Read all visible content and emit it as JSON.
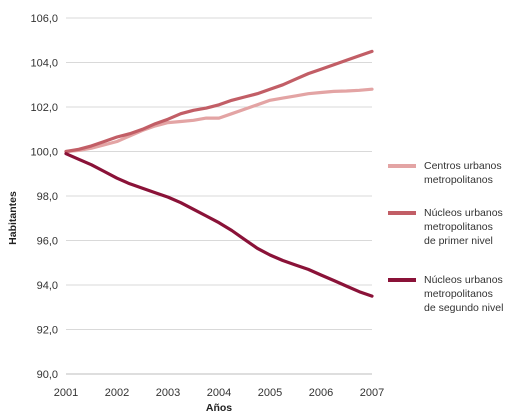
{
  "chart_data": {
    "type": "line",
    "title": "",
    "xlabel": "Años",
    "ylabel": "Habitantes",
    "xlim": [
      2001,
      2007
    ],
    "ylim": [
      90.0,
      106.0
    ],
    "y_ticks": [
      "90,0",
      "92,0",
      "94,0",
      "96,0",
      "98,0",
      "100,0",
      "102,0",
      "104,0",
      "106,0"
    ],
    "x_ticks": [
      "2001",
      "2002",
      "2003",
      "2004",
      "2005",
      "2006",
      "2007"
    ],
    "grid": "horizontal",
    "legend_position": "right",
    "series": [
      {
        "name": "Centros urbanos metropolitanos",
        "legend_lines": [
          "Centros urbanos",
          "metropolitanos"
        ],
        "color": "#e3a4a4",
        "x": [
          2001,
          2001.25,
          2001.5,
          2001.75,
          2002,
          2002.25,
          2002.5,
          2002.75,
          2003,
          2003.25,
          2003.5,
          2003.75,
          2004,
          2004.25,
          2004.5,
          2004.75,
          2005,
          2005.25,
          2005.5,
          2005.75,
          2006,
          2006.25,
          2006.5,
          2006.75,
          2007
        ],
        "y": [
          100.0,
          100.05,
          100.15,
          100.3,
          100.45,
          100.7,
          100.95,
          101.15,
          101.3,
          101.35,
          101.4,
          101.5,
          101.5,
          101.7,
          101.9,
          102.1,
          102.3,
          102.4,
          102.5,
          102.6,
          102.65,
          102.7,
          102.72,
          102.75,
          102.8
        ]
      },
      {
        "name": "Núcleos urbanos metropolitanos de primer nivel",
        "legend_lines": [
          "Núcleos urbanos",
          "metropolitanos",
          "de primer nivel"
        ],
        "color": "#c25e66",
        "x": [
          2001,
          2001.25,
          2001.5,
          2001.75,
          2002,
          2002.25,
          2002.5,
          2002.75,
          2003,
          2003.25,
          2003.5,
          2003.75,
          2004,
          2004.25,
          2004.5,
          2004.75,
          2005,
          2005.25,
          2005.5,
          2005.75,
          2006,
          2006.25,
          2006.5,
          2006.75,
          2007
        ],
        "y": [
          100.0,
          100.1,
          100.25,
          100.45,
          100.65,
          100.8,
          101.0,
          101.25,
          101.45,
          101.7,
          101.85,
          101.95,
          102.1,
          102.3,
          102.45,
          102.6,
          102.8,
          103.0,
          103.25,
          103.5,
          103.7,
          103.9,
          104.1,
          104.3,
          104.5
        ]
      },
      {
        "name": "Núcleos urbanos metropolitanos de segundo nivel",
        "legend_lines": [
          "Núcleos urbanos",
          "metropolitanos",
          "de segundo nivel"
        ],
        "color": "#8a1238",
        "x": [
          2001,
          2001.25,
          2001.5,
          2001.75,
          2002,
          2002.25,
          2002.5,
          2002.75,
          2003,
          2003.25,
          2003.5,
          2003.75,
          2004,
          2004.25,
          2004.5,
          2004.75,
          2005,
          2005.25,
          2005.5,
          2005.75,
          2006,
          2006.25,
          2006.5,
          2006.75,
          2007
        ],
        "y": [
          99.9,
          99.65,
          99.4,
          99.1,
          98.8,
          98.55,
          98.35,
          98.15,
          97.95,
          97.7,
          97.4,
          97.1,
          96.8,
          96.45,
          96.05,
          95.65,
          95.35,
          95.1,
          94.9,
          94.7,
          94.45,
          94.2,
          93.95,
          93.7,
          93.5
        ]
      }
    ]
  }
}
